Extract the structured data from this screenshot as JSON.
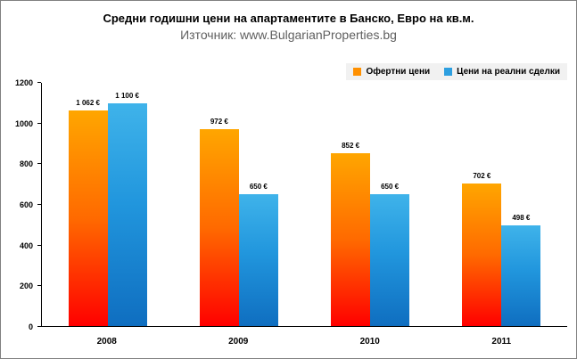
{
  "title": "Средни годишни цени на апартаментите в Банско, Евро на кв.м.",
  "subtitle": "Източник: www.BulgarianProperties.bg",
  "legend": [
    {
      "label": "Офертни цени",
      "color": "#ff9000"
    },
    {
      "label": "Цени на реални сделки",
      "color": "#2d9fe0"
    }
  ],
  "chart_data": {
    "type": "bar",
    "title": "Средни годишни цени на апартаментите в Банско, Евро на кв.м.",
    "subtitle": "Източник: www.BulgarianProperties.bg",
    "categories": [
      "2008",
      "2009",
      "2010",
      "2011"
    ],
    "series": [
      {
        "name": "Офертни цени",
        "color": "#ff9000",
        "values": [
          1062,
          972,
          852,
          702
        ],
        "labels": [
          "1 062 €",
          "972 €",
          "852 €",
          "702 €"
        ]
      },
      {
        "name": "Цени на реални сделки",
        "color": "#2d9fe0",
        "values": [
          1100,
          650,
          650,
          498
        ],
        "labels": [
          "1 100 €",
          "650 €",
          "650 €",
          "498 €"
        ]
      }
    ],
    "xlabel": "",
    "ylabel": "",
    "ylim": [
      0,
      1200
    ],
    "yticks": [
      0,
      200,
      400,
      600,
      800,
      1000,
      1200
    ],
    "grid": false,
    "legend_position": "top-right"
  }
}
